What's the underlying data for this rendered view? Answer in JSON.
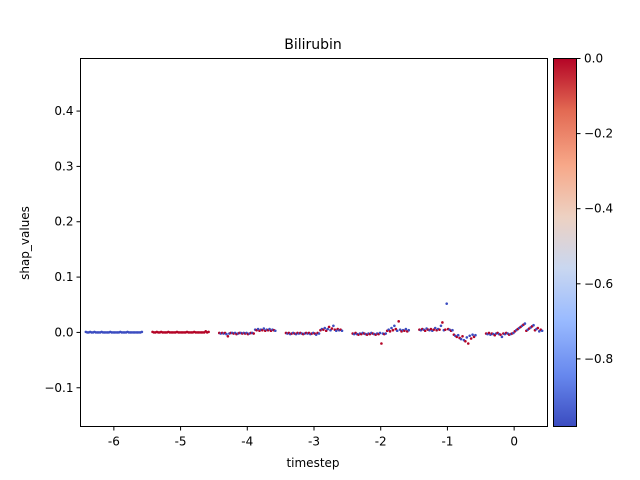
{
  "chart_data": {
    "type": "scatter",
    "subtype": "beeswarm",
    "title": "Bilirubin",
    "xlabel": "timestep",
    "ylabel": "shap_values",
    "categories": [
      "-6",
      "-5",
      "-4",
      "-3",
      "-2",
      "-1",
      "0"
    ],
    "x_positions": [
      -6,
      -5,
      -4,
      -3,
      -2,
      -1,
      0
    ],
    "xlim": [
      -6.5,
      0.5
    ],
    "ylim": [
      -0.17,
      0.495
    ],
    "yticks": [
      -0.1,
      0.0,
      0.1,
      0.2,
      0.3,
      0.4
    ],
    "ytick_labels": [
      "−0.1",
      "0.0",
      "0.1",
      "0.2",
      "0.3",
      "0.4"
    ],
    "grid": false,
    "colorbar": {
      "colormap": "coolwarm",
      "range": [
        -0.98,
        0.0
      ],
      "ticks": [
        0.0,
        -0.2,
        -0.4,
        -0.6,
        -0.8
      ],
      "tick_labels": [
        "0.0",
        "−0.2",
        "−0.4",
        "−0.6",
        "−0.8"
      ],
      "colors": [
        "#3b4cc0",
        "#6788ee",
        "#9abbff",
        "#c9d7f0",
        "#edd1c2",
        "#f7a889",
        "#e26952",
        "#b40426"
      ]
    },
    "groups": [
      {
        "x": -6,
        "y_min": -0.001,
        "y_max": 0.002,
        "color": "blue",
        "points": [
          0.001,
          0.0,
          0.0,
          0.001,
          0.0,
          0.0,
          0.001,
          0.0,
          0.0,
          0.0,
          0.0,
          0.001,
          0.0,
          0.0,
          0.0,
          0.0,
          0.0,
          0.001,
          0.0,
          0.0,
          0.0,
          0.0,
          0.0,
          0.0,
          0.001,
          0.0,
          0.0,
          0.0,
          0.0,
          0.001,
          0.0,
          0.0,
          0.0,
          0.0,
          0.0,
          0.0,
          0.0,
          0.0,
          0.0,
          0.001
        ]
      },
      {
        "x": -5,
        "y_min": -0.001,
        "y_max": 0.003,
        "color": "red",
        "points": [
          0.001,
          0.0,
          0.0,
          0.001,
          0.0,
          0.0,
          0.001,
          0.0,
          0.0,
          0.0,
          0.0,
          0.001,
          0.0,
          0.0,
          0.0,
          0.0,
          0.0,
          0.001,
          0.0,
          0.0,
          0.0,
          0.0,
          0.0,
          0.0,
          0.001,
          0.0,
          0.0,
          0.0,
          0.0,
          0.001,
          0.0,
          0.0,
          0.0,
          0.0,
          0.0,
          0.0,
          0.0,
          0.002,
          0.0,
          0.001
        ]
      },
      {
        "x": -4,
        "y_min": -0.007,
        "y_max": 0.007,
        "color": "mixed",
        "points": [
          -0.001,
          -0.002,
          -0.001,
          -0.002,
          -0.001,
          -0.003,
          -0.007,
          -0.002,
          -0.001,
          -0.001,
          -0.002,
          -0.001,
          -0.003,
          -0.002,
          -0.001,
          -0.001,
          -0.002,
          -0.001,
          -0.002,
          -0.001,
          -0.003,
          -0.002,
          -0.001,
          -0.001,
          -0.002,
          0.005,
          0.004,
          0.006,
          0.003,
          0.005,
          0.004,
          0.007,
          0.003,
          0.005,
          0.004,
          0.006,
          0.003,
          0.005,
          0.004,
          0.003
        ]
      },
      {
        "x": -3,
        "y_min": -0.004,
        "y_max": 0.012,
        "color": "mixed",
        "points": [
          -0.001,
          -0.002,
          -0.001,
          -0.003,
          -0.002,
          -0.001,
          -0.002,
          -0.003,
          -0.001,
          -0.002,
          -0.001,
          -0.002,
          -0.003,
          -0.002,
          -0.001,
          -0.002,
          -0.001,
          -0.003,
          -0.002,
          -0.001,
          -0.002,
          -0.004,
          -0.001,
          -0.002,
          0.004,
          0.006,
          0.005,
          0.008,
          0.003,
          0.006,
          0.01,
          0.004,
          0.007,
          0.012,
          0.005,
          0.003,
          0.006,
          0.004,
          0.005,
          0.003
        ]
      },
      {
        "x": -2,
        "y_min": -0.02,
        "y_max": 0.02,
        "color": "mixed",
        "points": [
          -0.002,
          -0.003,
          -0.001,
          -0.003,
          -0.004,
          -0.002,
          -0.003,
          -0.001,
          -0.002,
          -0.003,
          -0.004,
          -0.002,
          -0.003,
          -0.001,
          -0.002,
          -0.003,
          -0.004,
          -0.002,
          -0.003,
          -0.001,
          -0.02,
          -0.002,
          -0.003,
          -0.002,
          0.003,
          0.005,
          0.002,
          0.008,
          0.004,
          0.012,
          0.006,
          0.003,
          0.02,
          0.005,
          0.002,
          0.004,
          0.003,
          0.006,
          0.002,
          0.004
        ]
      },
      {
        "x": -1,
        "y_min": -0.02,
        "y_max": 0.052,
        "color": "mixed",
        "points": [
          0.005,
          0.004,
          0.006,
          0.005,
          0.003,
          0.007,
          0.005,
          0.004,
          0.006,
          0.003,
          0.005,
          0.008,
          0.004,
          0.006,
          0.005,
          0.012,
          0.018,
          0.004,
          0.005,
          0.052,
          0.006,
          0.005,
          0.003,
          0.004,
          -0.004,
          -0.006,
          -0.008,
          -0.005,
          -0.01,
          -0.012,
          -0.007,
          -0.014,
          -0.016,
          -0.009,
          -0.02,
          -0.006,
          -0.011,
          -0.004,
          -0.008,
          -0.005
        ]
      },
      {
        "x": 0,
        "y_min": -0.008,
        "y_max": 0.016,
        "color": "mixed",
        "points": [
          -0.002,
          -0.003,
          -0.001,
          -0.004,
          -0.002,
          -0.003,
          -0.005,
          -0.002,
          -0.001,
          -0.003,
          -0.004,
          -0.008,
          -0.002,
          -0.003,
          -0.001,
          -0.002,
          -0.004,
          -0.003,
          -0.002,
          -0.001,
          0.002,
          0.004,
          0.006,
          0.008,
          0.01,
          0.012,
          0.014,
          0.016,
          0.003,
          0.005,
          0.007,
          0.009,
          0.011,
          0.013,
          0.004,
          0.006,
          0.008,
          0.002,
          0.005,
          0.003
        ]
      }
    ]
  }
}
